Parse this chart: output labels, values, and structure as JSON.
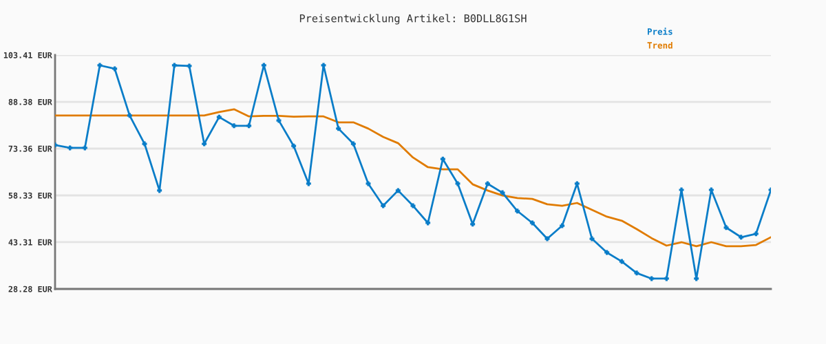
{
  "chart_data": {
    "type": "line",
    "title": "Preisentwicklung Artikel: B0DLL8G1SH",
    "categories": [
      null,
      null,
      null,
      null,
      null,
      null,
      null,
      null,
      null,
      null,
      null,
      null,
      null,
      null,
      null,
      null,
      null,
      null,
      null,
      null,
      null,
      null,
      null,
      null,
      null,
      null,
      null,
      null,
      null,
      null,
      null,
      null,
      null,
      null,
      null,
      null,
      null,
      null,
      null,
      null,
      null,
      null,
      null,
      null,
      null,
      null,
      null,
      null,
      null
    ],
    "series": [
      {
        "name": "Preis",
        "color": "#0a7dc8",
        "marker": "cross",
        "values": [
          74.5,
          73.6,
          73.6,
          100.1,
          99.0,
          84.0,
          74.9,
          59.9,
          100.1,
          99.9,
          74.9,
          83.5,
          80.7,
          80.7,
          100.1,
          82.4,
          74.2,
          62.1,
          100.1,
          79.8,
          74.9,
          62.1,
          55.0,
          59.9,
          55.0,
          49.5,
          70.0,
          62.1,
          49.1,
          62.1,
          59.2,
          53.3,
          49.5,
          44.4,
          48.6,
          62.1,
          44.4,
          40.0,
          37.1,
          33.4,
          31.6,
          31.6,
          60.1,
          31.6,
          60.1,
          48.0,
          44.9,
          46.0,
          60.1
        ]
      },
      {
        "name": "Trend",
        "color": "#e07b00",
        "marker": "none",
        "values": [
          84.0,
          84.0,
          84.0,
          84.0,
          84.0,
          84.0,
          84.0,
          84.0,
          84.0,
          84.0,
          84.0,
          85.1,
          86.0,
          83.7,
          83.9,
          83.9,
          83.6,
          83.7,
          83.7,
          81.8,
          81.8,
          79.8,
          77.1,
          75.1,
          70.5,
          67.4,
          66.7,
          66.7,
          61.9,
          59.9,
          58.3,
          57.5,
          57.2,
          55.5,
          55.0,
          55.9,
          53.7,
          51.5,
          50.2,
          47.5,
          44.6,
          42.2,
          43.3,
          42.0,
          43.3,
          42.0,
          42.0,
          42.4,
          44.9
        ]
      }
    ],
    "ylim": [
      28.28,
      103.41
    ],
    "yticks": [
      {
        "value": 28.28,
        "label": "28.28 EUR"
      },
      {
        "value": 43.31,
        "label": "43.31 EUR"
      },
      {
        "value": 58.33,
        "label": "58.33 EUR"
      },
      {
        "value": 73.36,
        "label": "73.36 EUR"
      },
      {
        "value": 88.38,
        "label": "88.38 EUR"
      },
      {
        "value": 103.41,
        "label": "103.41 EUR"
      }
    ],
    "grid": "y",
    "legend": "top right",
    "tick_labels": "y",
    "line_style": "solid"
  }
}
